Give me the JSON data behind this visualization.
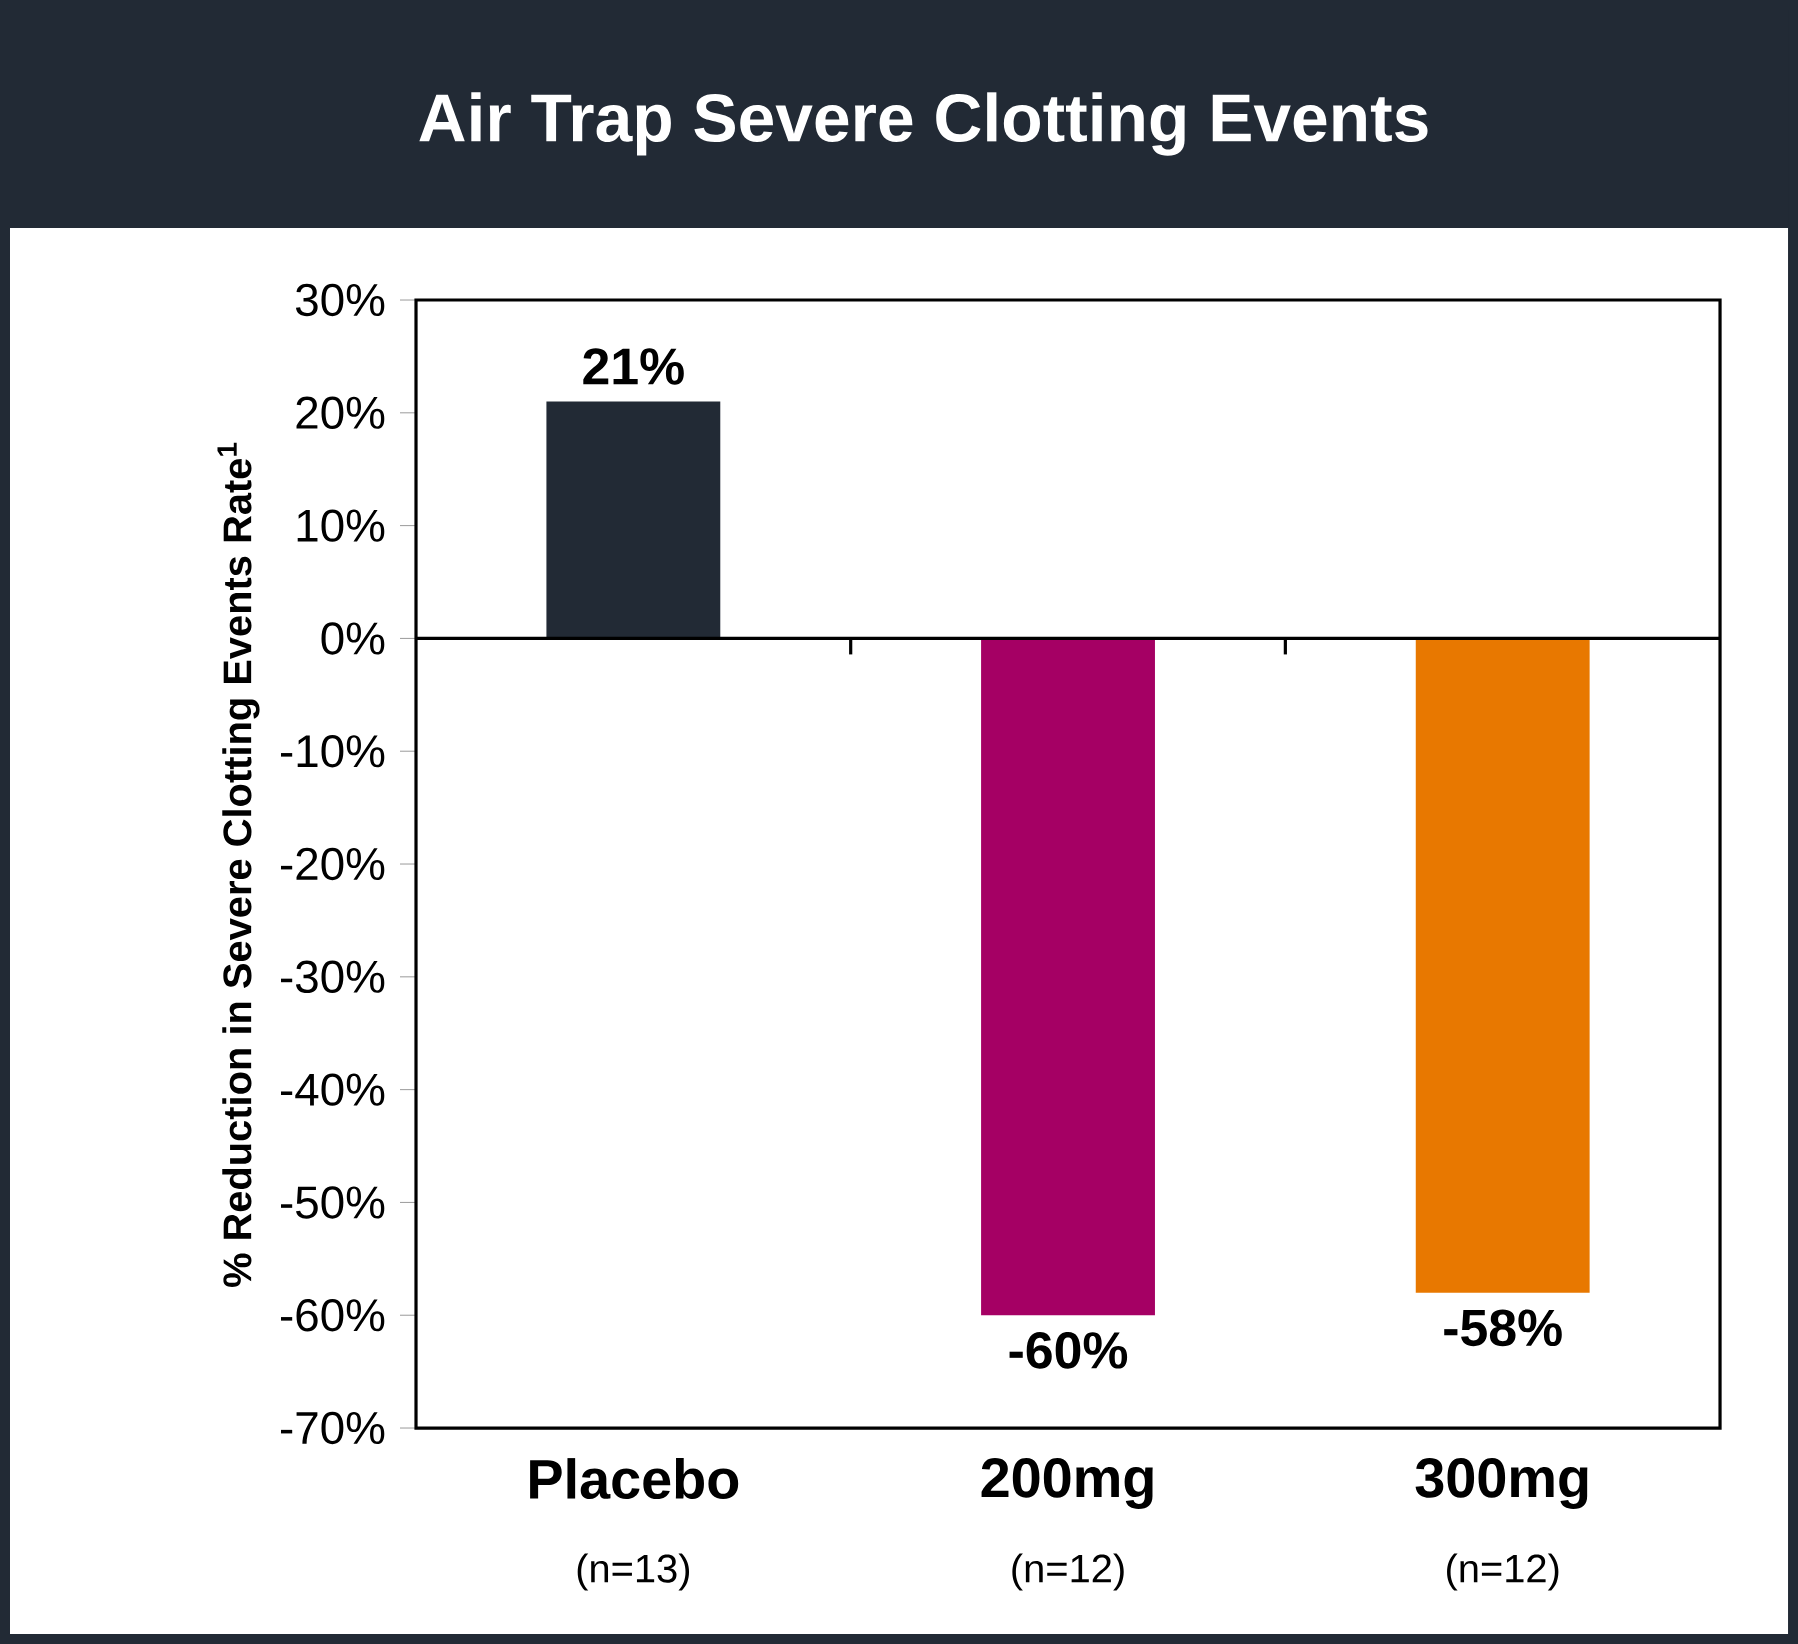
{
  "chart_data": {
    "type": "bar",
    "title": "Air Trap Severe Clotting Events",
    "ylabel": "% Reduction in Severe Clotting Events Rate$^{1}$",
    "categories": [
      "Placebo",
      "200mg",
      "300mg"
    ],
    "values": [
      21,
      -60,
      -58
    ],
    "colors": [
      "#222a35",
      "#a50064",
      "#e87800"
    ],
    "value_labels": [
      "21%",
      "-60%",
      "-58%"
    ],
    "annotations": [
      "(n=13)",
      "(n=12)",
      "(n=12)"
    ],
    "ylim": [
      -70,
      30
    ],
    "yticks": [
      {
        "value": -70,
        "label": "-70%"
      },
      {
        "value": -60,
        "label": "-60%"
      },
      {
        "value": -50,
        "label": "-50%"
      },
      {
        "value": -40,
        "label": "-40%"
      },
      {
        "value": -30,
        "label": "-30%"
      },
      {
        "value": -20,
        "label": "-20%"
      },
      {
        "value": -10,
        "label": "-10%"
      },
      {
        "value": 0,
        "label": "0%"
      },
      {
        "value": 10,
        "label": "10%"
      },
      {
        "value": 20,
        "label": "20%"
      },
      {
        "value": 30,
        "label": "30%"
      }
    ],
    "ref_lines": [
      {
        "axis": "y",
        "value": 0,
        "color": "#000000"
      }
    ]
  }
}
